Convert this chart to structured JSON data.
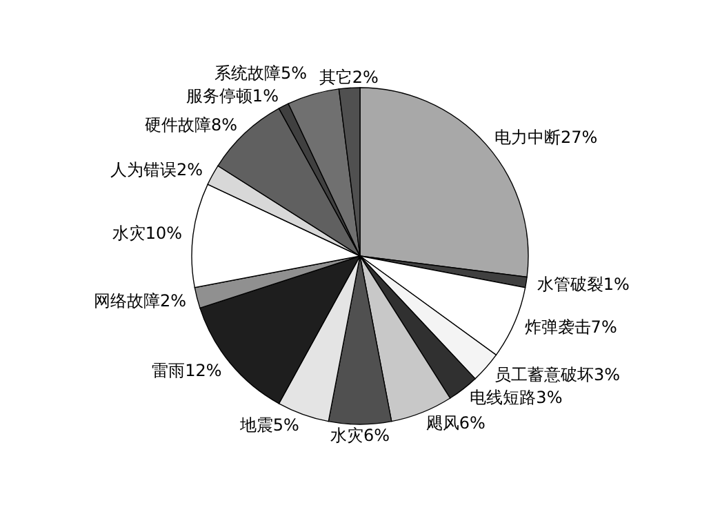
{
  "chart_data": {
    "type": "pie",
    "categories": [
      "电力中断",
      "水管破裂",
      "炸弹袭击",
      "员工蓄意破坏",
      "电线短路",
      "飓风",
      "水灾",
      "地震",
      "雷雨",
      "网络故障",
      "水灾",
      "人为错误",
      "硬件故障",
      "服务停顿",
      "系统故障",
      "其它"
    ],
    "values": [
      27,
      1,
      7,
      3,
      3,
      6,
      6,
      5,
      12,
      2,
      10,
      2,
      8,
      1,
      5,
      2
    ],
    "value_labels": [
      "27%",
      "1%",
      "7%",
      "3%",
      "3%",
      "6%",
      "6%",
      "5%",
      "12%",
      "2%",
      "10%",
      "2%",
      "8%",
      "1%",
      "5%",
      "2%"
    ],
    "colors": [
      "#a8a8a8",
      "#404040",
      "#ffffff",
      "#f4f4f4",
      "#303030",
      "#c8c8c8",
      "#505050",
      "#e4e4e4",
      "#1e1e1e",
      "#909090",
      "#ffffff",
      "#d8d8d8",
      "#606060",
      "#404040",
      "#707070",
      "#505050"
    ]
  }
}
